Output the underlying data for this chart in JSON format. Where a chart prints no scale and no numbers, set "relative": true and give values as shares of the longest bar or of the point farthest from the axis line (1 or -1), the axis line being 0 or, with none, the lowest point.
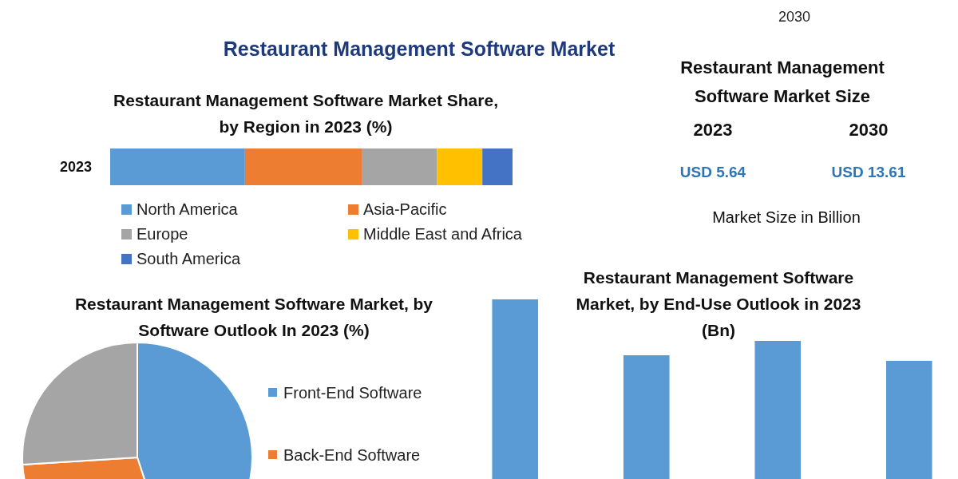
{
  "chart_data": [
    {
      "type": "other",
      "title": "Restaurant Management Software Market",
      "annotations": [
        "2030"
      ]
    },
    {
      "type": "bar",
      "title": "Restaurant Management Software Market Share, by Region in 2023 (%)",
      "orientation": "horizontal",
      "stacked": true,
      "relative": true,
      "categories": [
        "2023"
      ],
      "legend": "bottom",
      "series": [
        {
          "name": "North America",
          "color": "#5b9bd5",
          "values": [
            0.335
          ]
        },
        {
          "name": "Asia-Pacific",
          "color": "#ed7d31",
          "values": [
            0.29
          ]
        },
        {
          "name": "Europe",
          "color": "#a5a5a5",
          "values": [
            0.187
          ]
        },
        {
          "name": "Middle East and Africa",
          "color": "#ffc000",
          "values": [
            0.113
          ]
        },
        {
          "name": "South America",
          "color": "#4472c4",
          "values": [
            0.075
          ]
        }
      ]
    },
    {
      "type": "pie",
      "title": "Restaurant Management Software Market, by Software Outlook In 2023 (%)",
      "categories": [
        "Front-End Software",
        "Back-End Software",
        null
      ],
      "values": [
        45,
        29,
        26
      ],
      "colors": [
        "#5b9bd5",
        "#ed7d31",
        "#a5a5a5"
      ],
      "legend": "right"
    },
    {
      "type": "bar",
      "title": "Restaurant Management Software Market, by End-Use Outlook in 2023 (Bn)",
      "relative": true,
      "categories": [
        null,
        null,
        null,
        null
      ],
      "values": [
        1,
        0.689,
        0.769,
        0.658
      ],
      "color": "#5b9bd5"
    },
    {
      "type": "other",
      "title": "Restaurant Management Software Market Size",
      "categories": [
        "2023",
        "2030"
      ],
      "value_labels": [
        "USD 5.64",
        "USD 13.61"
      ],
      "annotations": [
        "Market Size in Billion"
      ]
    }
  ]
}
